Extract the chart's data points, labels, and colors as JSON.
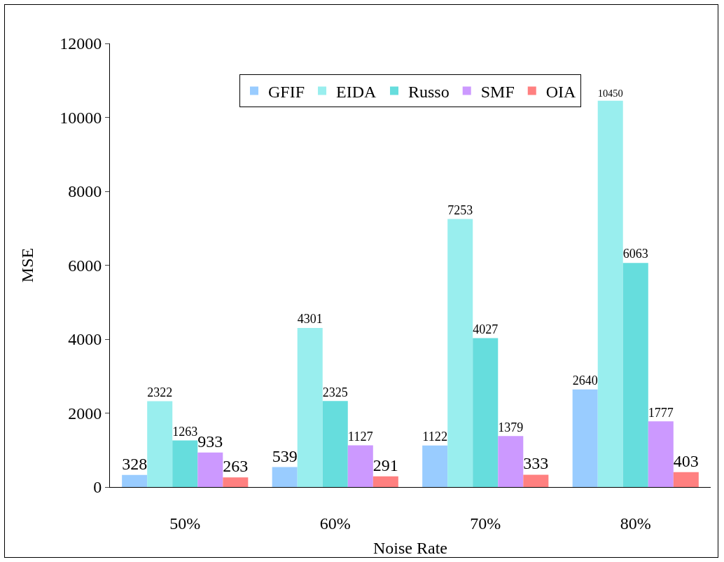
{
  "chart_data": {
    "type": "bar",
    "xlabel": "Noise Rate",
    "ylabel": "MSE",
    "categories": [
      "50%",
      "60%",
      "70%",
      "80%"
    ],
    "series": [
      {
        "name": "GFIF",
        "color": "#99ccff",
        "values": [
          328,
          539,
          1122,
          2640
        ]
      },
      {
        "name": "EIDA",
        "color": "#99eeee",
        "values": [
          2322,
          4301,
          7253,
          10450
        ]
      },
      {
        "name": "Russo",
        "color": "#66dddd",
        "values": [
          1263,
          2325,
          4027,
          6063
        ]
      },
      {
        "name": "SMF",
        "color": "#cc99ff",
        "values": [
          933,
          1127,
          1379,
          1777
        ]
      },
      {
        "name": "OIA",
        "color": "#ff8080",
        "values": [
          263,
          291,
          333,
          403
        ]
      }
    ],
    "ylim": [
      0,
      12000
    ],
    "yticks": [
      0,
      2000,
      4000,
      6000,
      8000,
      10000,
      12000
    ],
    "data_labels": true,
    "legend": "top",
    "grid": false
  }
}
